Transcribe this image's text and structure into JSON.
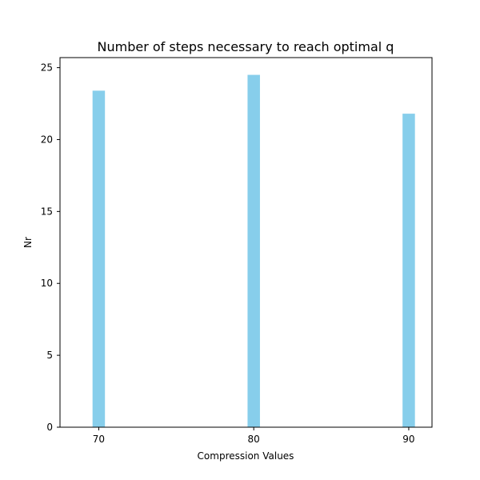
{
  "chart_data": {
    "type": "bar",
    "title": "Number of steps necessary to reach optimal q",
    "xlabel": "Compression Values",
    "ylabel": "Nr",
    "categories": [
      70,
      80,
      90
    ],
    "values": [
      23.4,
      24.5,
      21.8
    ],
    "xlim": [
      67.5,
      91.5
    ],
    "ylim": [
      0,
      25.7
    ],
    "xticks": [
      70,
      80,
      90
    ],
    "yticks": [
      0,
      5,
      10,
      15,
      20,
      25
    ],
    "bar_width": 0.8,
    "bar_color": "#87CEEB",
    "grid": false,
    "legend": false
  }
}
